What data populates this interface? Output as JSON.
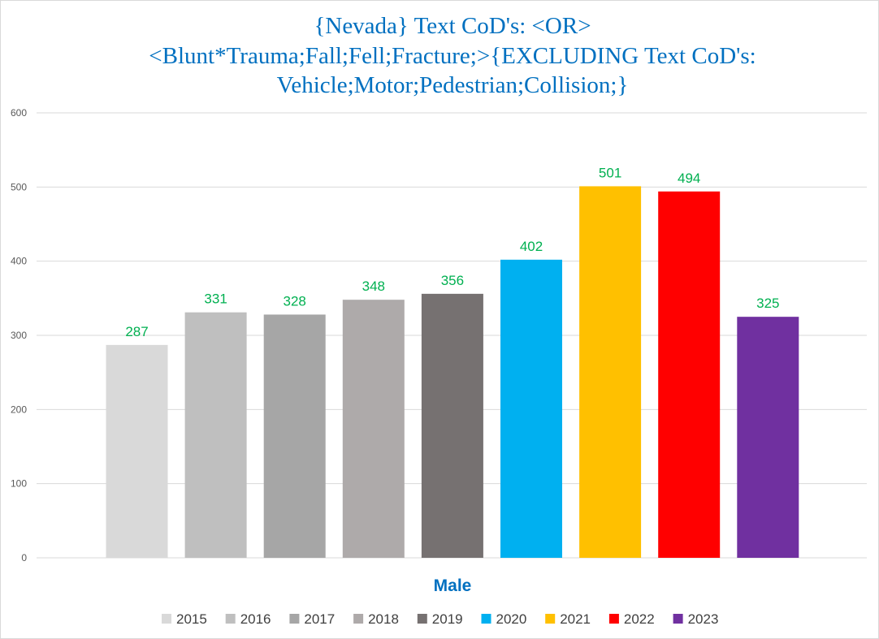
{
  "chart_data": {
    "type": "bar",
    "title": [
      "{Nevada}  Text CoD's: <OR>",
      "<Blunt*Trauma;Fall;Fell;Fracture;>{EXCLUDING Text CoD's:",
      "Vehicle;Motor;Pedestrian;Collision;}"
    ],
    "xlabel": "Male",
    "ylabel": "",
    "categories": [
      "Male"
    ],
    "series": [
      {
        "name": "2015",
        "values": [
          287
        ],
        "color": "#d9d9d9"
      },
      {
        "name": "2016",
        "values": [
          331
        ],
        "color": "#bfbfbf"
      },
      {
        "name": "2017",
        "values": [
          328
        ],
        "color": "#a6a6a6"
      },
      {
        "name": "2018",
        "values": [
          348
        ],
        "color": "#aeaaaa"
      },
      {
        "name": "2019",
        "values": [
          356
        ],
        "color": "#767171"
      },
      {
        "name": "2020",
        "values": [
          402
        ],
        "color": "#00b0f0"
      },
      {
        "name": "2021",
        "values": [
          501
        ],
        "color": "#ffc000"
      },
      {
        "name": "2022",
        "values": [
          494
        ],
        "color": "#ff0000"
      },
      {
        "name": "2023",
        "values": [
          325
        ],
        "color": "#7030a0"
      }
    ],
    "ylim": [
      0,
      600
    ],
    "yticks": [
      0,
      100,
      200,
      300,
      400,
      500,
      600
    ],
    "grid": true,
    "legend": "bottom",
    "colors": {
      "title": "#0070c0",
      "xlabel": "#0070c0",
      "data_label": "#00b050",
      "gridline": "#d9d9d9",
      "tick_label": "#595959",
      "legend_text": "#404040"
    }
  }
}
